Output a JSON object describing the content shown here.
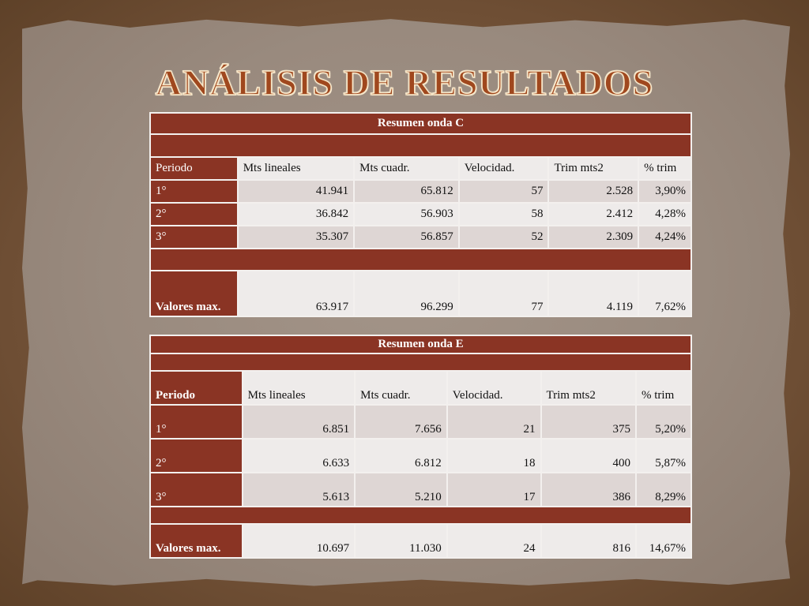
{
  "title": "ANÁLISIS DE RESULTADOS",
  "table_c": {
    "heading": "Resumen onda C",
    "columns": [
      "Periodo",
      "Mts lineales",
      "Mts cuadr.",
      "Velocidad.",
      "Trim mts2",
      "% trim"
    ],
    "rows": [
      [
        "1°",
        "41.941",
        "65.812",
        "57",
        "2.528",
        "3,90%"
      ],
      [
        "2°",
        "36.842",
        "56.903",
        "58",
        "2.412",
        "4,28%"
      ],
      [
        "3°",
        "35.307",
        "56.857",
        "52",
        "2.309",
        "4,24%"
      ]
    ],
    "max": [
      "Valores max.",
      "63.917",
      "96.299",
      "77",
      "4.119",
      "7,62%"
    ]
  },
  "table_e": {
    "heading": "Resumen onda E",
    "columns": [
      "Periodo",
      "Mts lineales",
      "Mts cuadr.",
      "Velocidad.",
      "Trim mts2",
      "% trim"
    ],
    "rows": [
      [
        "1°",
        "6.851",
        "7.656",
        "21",
        "375",
        "5,20%"
      ],
      [
        "2°",
        "6.633",
        "6.812",
        "18",
        "400",
        "5,87%"
      ],
      [
        "3°",
        "5.613",
        "5.210",
        "17",
        "386",
        "8,29%"
      ]
    ],
    "max": [
      "Valores max.",
      "10.697",
      "11.030",
      "24",
      "816",
      "14,67%"
    ]
  }
}
